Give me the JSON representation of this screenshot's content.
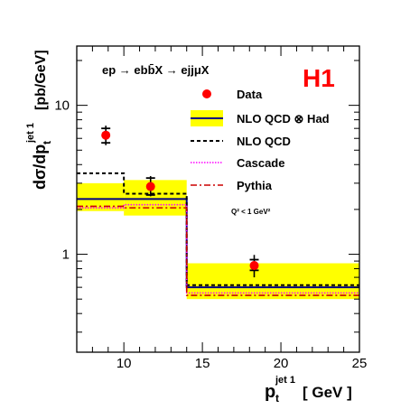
{
  "chart_data": {
    "type": "line",
    "process_label": "ep → ebb̄X → ejjμX",
    "experiment_logo": "H1",
    "xlabel": {
      "main": "p",
      "sub": "t",
      "sup": "jet 1",
      "unit": "[ GeV ]"
    },
    "ylabel": {
      "main": "dσ/dp",
      "sub": "t",
      "sup": "jet 1",
      "unit": "[pb/GeV]"
    },
    "x_range": [
      7,
      25
    ],
    "y_range": [
      0.22,
      25
    ],
    "y_scale": "log",
    "x_ticks": [
      "10",
      "15",
      "20",
      "25"
    ],
    "y_ticks": [
      "1",
      "10"
    ],
    "bin_edges": [
      7,
      10,
      14,
      25
    ],
    "series": [
      {
        "name": "Data",
        "kind": "points",
        "color": "#ff0000",
        "x": [
          8.85,
          11.7,
          18.3
        ],
        "y": [
          6.3,
          2.85,
          0.84
        ],
        "err_stat_low": [
          5.6,
          2.5,
          0.78
        ],
        "err_stat_high": [
          7.0,
          3.25,
          0.92
        ],
        "err_tot_low": [
          5.4,
          2.45,
          0.7
        ],
        "err_tot_high": [
          7.3,
          3.35,
          0.99
        ]
      },
      {
        "name": "NLO  QCD ⊗ Had",
        "kind": "hist",
        "color": "#000080",
        "values": [
          2.35,
          2.35,
          0.6
        ],
        "band_low": [
          1.95,
          1.82,
          0.5
        ],
        "band_high": [
          3.0,
          3.15,
          0.87
        ],
        "band_color": "#ffff00"
      },
      {
        "name": "NLO  QCD",
        "kind": "hist",
        "color": "#000000",
        "values": [
          3.5,
          2.55,
          0.62
        ]
      },
      {
        "name": "Cascade",
        "kind": "hist",
        "color": "#ff00ff",
        "values": [
          2.05,
          2.15,
          0.55
        ]
      },
      {
        "name": "Pythia",
        "kind": "hist",
        "color": "#cc0000",
        "values": [
          2.1,
          2.05,
          0.53
        ]
      }
    ],
    "annotation": "Q² < 1 GeV²",
    "legend_position": "top-right",
    "grid": false
  }
}
